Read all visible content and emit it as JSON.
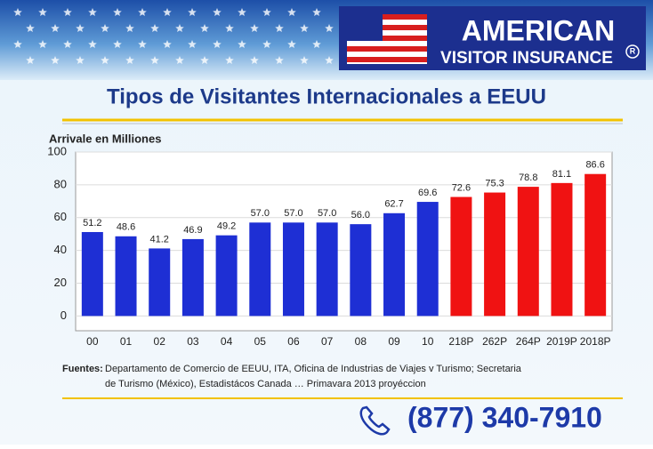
{
  "header": {
    "logo_line1": "AMERICAN",
    "logo_line2": "VISITOR INSURANCE",
    "registered": "R"
  },
  "chart_data": {
    "type": "bar",
    "title": "Tipos de Visitantes Internacionales a EEUU",
    "y_label": "Arrivale en Milliones",
    "categories": [
      "00",
      "01",
      "02",
      "03",
      "04",
      "05",
      "06",
      "07",
      "08",
      "09",
      "10",
      "218P",
      "262P",
      "264P",
      "2019P",
      "2018P"
    ],
    "values": [
      51.2,
      48.6,
      41.2,
      46.9,
      49.2,
      57.0,
      57.0,
      57.0,
      56.0,
      62.7,
      69.6,
      72.6,
      75.3,
      78.8,
      81.1,
      86.6
    ],
    "value_labels": [
      "51.2",
      "48.6",
      "41.2",
      "46.9",
      "49.2",
      "57.0",
      "57.0",
      "57.0",
      "56.0",
      "62.7",
      "69.6",
      "72.6",
      "75.3",
      "78.8",
      "81.1",
      "86.6"
    ],
    "colors": [
      "#1e2fd4",
      "#1e2fd4",
      "#1e2fd4",
      "#1e2fd4",
      "#1e2fd4",
      "#1e2fd4",
      "#1e2fd4",
      "#1e2fd4",
      "#1e2fd4",
      "#1e2fd4",
      "#1e2fd4",
      "#f01212",
      "#f01212",
      "#f01212",
      "#f01212",
      "#f01212"
    ],
    "ylim": [
      -9,
      100
    ],
    "yticks": [
      0,
      20,
      40,
      60,
      80,
      100
    ],
    "grid": true
  },
  "source": {
    "label": "Fuentes:",
    "lines": [
      "Departamento de Comercio de EEUU, ITA, Oficina de Industrias de Viajes v Turismo; Secretaria",
      "de Turismo (México), Estadistácos Canada … Primavara 2013 proyéccion"
    ]
  },
  "phone": "(877) 340-7910"
}
